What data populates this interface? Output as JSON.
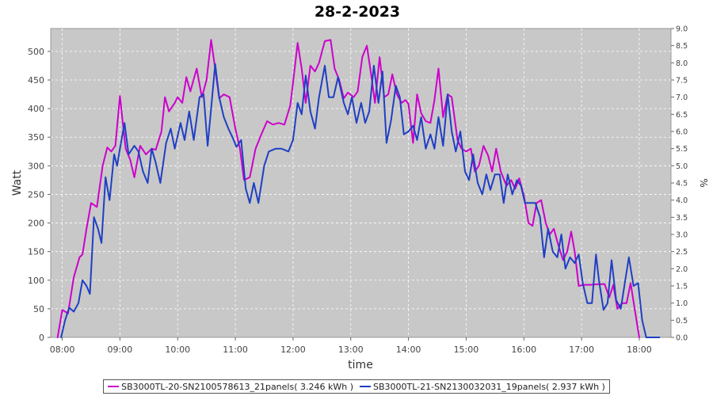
{
  "chart_data": {
    "type": "line",
    "title": "28-2-2023",
    "xlabel": "time",
    "ylabel": "Watt",
    "y2label": "%",
    "xlim": [
      7.8,
      18.55
    ],
    "ylim": [
      0,
      540
    ],
    "y2lim": [
      0,
      9.0
    ],
    "x_ticks": [
      {
        "value": 8,
        "label": "08:00"
      },
      {
        "value": 9,
        "label": "09:00"
      },
      {
        "value": 10,
        "label": "10:00"
      },
      {
        "value": 11,
        "label": "11:00"
      },
      {
        "value": 12,
        "label": "12:00"
      },
      {
        "value": 13,
        "label": "13:00"
      },
      {
        "value": 14,
        "label": "14:00"
      },
      {
        "value": 15,
        "label": "15:00"
      },
      {
        "value": 16,
        "label": "16:00"
      },
      {
        "value": 17,
        "label": "17:00"
      },
      {
        "value": 18,
        "label": "18:00"
      }
    ],
    "y_ticks": [
      {
        "value": 0,
        "label": "0"
      },
      {
        "value": 50,
        "label": "50"
      },
      {
        "value": 100,
        "label": "100"
      },
      {
        "value": 150,
        "label": "150"
      },
      {
        "value": 200,
        "label": "200"
      },
      {
        "value": 250,
        "label": "250"
      },
      {
        "value": 300,
        "label": "300"
      },
      {
        "value": 350,
        "label": "350"
      },
      {
        "value": 400,
        "label": "400"
      },
      {
        "value": 450,
        "label": "450"
      },
      {
        "value": 500,
        "label": "500"
      }
    ],
    "y2_ticks": [
      {
        "value": 0.0,
        "label": "0.0"
      },
      {
        "value": 0.5,
        "label": "0.5"
      },
      {
        "value": 1.0,
        "label": "1.0"
      },
      {
        "value": 1.5,
        "label": "1.5"
      },
      {
        "value": 2.0,
        "label": "2.0"
      },
      {
        "value": 2.5,
        "label": "2.5"
      },
      {
        "value": 3.0,
        "label": "3.0"
      },
      {
        "value": 3.5,
        "label": "3.5"
      },
      {
        "value": 4.0,
        "label": "4.0"
      },
      {
        "value": 4.5,
        "label": "4.5"
      },
      {
        "value": 5.0,
        "label": "5.0"
      },
      {
        "value": 5.5,
        "label": "5.5"
      },
      {
        "value": 6.0,
        "label": "6.0"
      },
      {
        "value": 6.5,
        "label": "6.5"
      },
      {
        "value": 7.0,
        "label": "7.0"
      },
      {
        "value": 7.5,
        "label": "7.5"
      },
      {
        "value": 8.0,
        "label": "8.0"
      },
      {
        "value": 8.5,
        "label": "8.5"
      },
      {
        "value": 9.0,
        "label": "9.0"
      }
    ],
    "grid": true,
    "legend_position": "bottom",
    "series": [
      {
        "name": "SB3000TL-20-SN2100578613_21panels( 3.246 kWh )",
        "color": "#cc00cc",
        "points": [
          [
            7.92,
            0
          ],
          [
            8.0,
            48
          ],
          [
            8.1,
            42
          ],
          [
            8.2,
            105
          ],
          [
            8.3,
            140
          ],
          [
            8.35,
            145
          ],
          [
            8.42,
            190
          ],
          [
            8.5,
            235
          ],
          [
            8.6,
            228
          ],
          [
            8.7,
            300
          ],
          [
            8.78,
            332
          ],
          [
            8.85,
            325
          ],
          [
            8.92,
            335
          ],
          [
            9.0,
            422
          ],
          [
            9.05,
            375
          ],
          [
            9.1,
            330
          ],
          [
            9.18,
            310
          ],
          [
            9.25,
            280
          ],
          [
            9.35,
            335
          ],
          [
            9.45,
            320
          ],
          [
            9.55,
            330
          ],
          [
            9.62,
            328
          ],
          [
            9.72,
            360
          ],
          [
            9.78,
            420
          ],
          [
            9.85,
            395
          ],
          [
            9.95,
            410
          ],
          [
            10.0,
            420
          ],
          [
            10.08,
            410
          ],
          [
            10.15,
            455
          ],
          [
            10.22,
            430
          ],
          [
            10.33,
            470
          ],
          [
            10.42,
            420
          ],
          [
            10.5,
            450
          ],
          [
            10.58,
            520
          ],
          [
            10.65,
            470
          ],
          [
            10.72,
            418
          ],
          [
            10.8,
            425
          ],
          [
            10.9,
            420
          ],
          [
            11.0,
            365
          ],
          [
            11.08,
            330
          ],
          [
            11.15,
            275
          ],
          [
            11.25,
            280
          ],
          [
            11.35,
            330
          ],
          [
            11.45,
            355
          ],
          [
            11.55,
            378
          ],
          [
            11.65,
            372
          ],
          [
            11.75,
            375
          ],
          [
            11.85,
            372
          ],
          [
            11.95,
            405
          ],
          [
            12.0,
            445
          ],
          [
            12.08,
            515
          ],
          [
            12.15,
            470
          ],
          [
            12.22,
            410
          ],
          [
            12.3,
            475
          ],
          [
            12.38,
            465
          ],
          [
            12.45,
            480
          ],
          [
            12.55,
            518
          ],
          [
            12.65,
            520
          ],
          [
            12.72,
            470
          ],
          [
            12.8,
            450
          ],
          [
            12.88,
            418
          ],
          [
            12.95,
            428
          ],
          [
            13.05,
            420
          ],
          [
            13.12,
            430
          ],
          [
            13.2,
            490
          ],
          [
            13.28,
            510
          ],
          [
            13.35,
            462
          ],
          [
            13.42,
            410
          ],
          [
            13.5,
            490
          ],
          [
            13.58,
            420
          ],
          [
            13.65,
            425
          ],
          [
            13.72,
            460
          ],
          [
            13.8,
            425
          ],
          [
            13.88,
            410
          ],
          [
            13.95,
            415
          ],
          [
            14.0,
            408
          ],
          [
            14.08,
            340
          ],
          [
            14.15,
            425
          ],
          [
            14.22,
            392
          ],
          [
            14.3,
            378
          ],
          [
            14.38,
            375
          ],
          [
            14.45,
            415
          ],
          [
            14.52,
            470
          ],
          [
            14.6,
            385
          ],
          [
            14.68,
            425
          ],
          [
            14.75,
            420
          ],
          [
            14.85,
            345
          ],
          [
            14.92,
            330
          ],
          [
            15.0,
            325
          ],
          [
            15.08,
            330
          ],
          [
            15.15,
            290
          ],
          [
            15.22,
            300
          ],
          [
            15.3,
            335
          ],
          [
            15.38,
            318
          ],
          [
            15.45,
            290
          ],
          [
            15.52,
            330
          ],
          [
            15.6,
            290
          ],
          [
            15.7,
            265
          ],
          [
            15.78,
            275
          ],
          [
            15.85,
            260
          ],
          [
            15.92,
            278
          ],
          [
            16.0,
            248
          ],
          [
            16.08,
            200
          ],
          [
            16.15,
            195
          ],
          [
            16.22,
            235
          ],
          [
            16.3,
            240
          ],
          [
            16.38,
            200
          ],
          [
            16.45,
            180
          ],
          [
            16.52,
            190
          ],
          [
            16.6,
            160
          ],
          [
            16.68,
            135
          ],
          [
            16.75,
            150
          ],
          [
            16.82,
            185
          ],
          [
            16.88,
            150
          ],
          [
            16.95,
            90
          ],
          [
            17.05,
            92
          ],
          [
            17.15,
            92
          ],
          [
            17.3,
            93
          ],
          [
            17.4,
            93
          ],
          [
            17.48,
            70
          ],
          [
            17.55,
            92
          ],
          [
            17.62,
            50
          ],
          [
            17.7,
            60
          ],
          [
            17.78,
            60
          ],
          [
            17.85,
            95
          ],
          [
            17.92,
            50
          ],
          [
            18.0,
            0
          ]
        ]
      },
      {
        "name": "SB3000TL-21-SN2130032031_19panels( 2.937 kWh )",
        "color": "#1f3fc4",
        "points": [
          [
            7.98,
            0
          ],
          [
            8.05,
            30
          ],
          [
            8.12,
            52
          ],
          [
            8.2,
            45
          ],
          [
            8.28,
            60
          ],
          [
            8.35,
            100
          ],
          [
            8.42,
            90
          ],
          [
            8.48,
            76
          ],
          [
            8.55,
            210
          ],
          [
            8.62,
            190
          ],
          [
            8.68,
            165
          ],
          [
            8.75,
            280
          ],
          [
            8.82,
            240
          ],
          [
            8.9,
            320
          ],
          [
            8.95,
            300
          ],
          [
            9.0,
            330
          ],
          [
            9.08,
            375
          ],
          [
            9.15,
            320
          ],
          [
            9.25,
            335
          ],
          [
            9.32,
            325
          ],
          [
            9.4,
            290
          ],
          [
            9.48,
            270
          ],
          [
            9.55,
            330
          ],
          [
            9.62,
            305
          ],
          [
            9.7,
            270
          ],
          [
            9.8,
            340
          ],
          [
            9.88,
            365
          ],
          [
            9.95,
            330
          ],
          [
            10.05,
            375
          ],
          [
            10.12,
            345
          ],
          [
            10.2,
            395
          ],
          [
            10.28,
            345
          ],
          [
            10.38,
            420
          ],
          [
            10.45,
            425
          ],
          [
            10.52,
            335
          ],
          [
            10.58,
            400
          ],
          [
            10.65,
            478
          ],
          [
            10.72,
            420
          ],
          [
            10.8,
            385
          ],
          [
            10.88,
            365
          ],
          [
            10.95,
            350
          ],
          [
            11.02,
            333
          ],
          [
            11.1,
            345
          ],
          [
            11.18,
            260
          ],
          [
            11.25,
            235
          ],
          [
            11.32,
            270
          ],
          [
            11.4,
            235
          ],
          [
            11.5,
            300
          ],
          [
            11.58,
            325
          ],
          [
            11.7,
            330
          ],
          [
            11.8,
            330
          ],
          [
            11.92,
            325
          ],
          [
            12.0,
            345
          ],
          [
            12.08,
            410
          ],
          [
            12.15,
            390
          ],
          [
            12.22,
            458
          ],
          [
            12.3,
            395
          ],
          [
            12.38,
            365
          ],
          [
            12.45,
            420
          ],
          [
            12.55,
            475
          ],
          [
            12.62,
            420
          ],
          [
            12.7,
            420
          ],
          [
            12.78,
            455
          ],
          [
            12.88,
            410
          ],
          [
            12.95,
            390
          ],
          [
            13.02,
            420
          ],
          [
            13.1,
            375
          ],
          [
            13.18,
            410
          ],
          [
            13.25,
            375
          ],
          [
            13.32,
            395
          ],
          [
            13.4,
            475
          ],
          [
            13.48,
            410
          ],
          [
            13.55,
            465
          ],
          [
            13.62,
            340
          ],
          [
            13.7,
            380
          ],
          [
            13.78,
            440
          ],
          [
            13.85,
            420
          ],
          [
            13.92,
            355
          ],
          [
            14.0,
            360
          ],
          [
            14.08,
            370
          ],
          [
            14.15,
            345
          ],
          [
            14.22,
            385
          ],
          [
            14.3,
            330
          ],
          [
            14.38,
            355
          ],
          [
            14.45,
            330
          ],
          [
            14.52,
            385
          ],
          [
            14.6,
            335
          ],
          [
            14.68,
            425
          ],
          [
            14.75,
            360
          ],
          [
            14.82,
            325
          ],
          [
            14.9,
            360
          ],
          [
            14.98,
            290
          ],
          [
            15.05,
            275
          ],
          [
            15.12,
            320
          ],
          [
            15.2,
            270
          ],
          [
            15.28,
            250
          ],
          [
            15.35,
            285
          ],
          [
            15.42,
            258
          ],
          [
            15.5,
            285
          ],
          [
            15.58,
            285
          ],
          [
            15.65,
            235
          ],
          [
            15.72,
            285
          ],
          [
            15.8,
            250
          ],
          [
            15.88,
            275
          ],
          [
            15.95,
            265
          ],
          [
            16.02,
            235
          ],
          [
            16.1,
            235
          ],
          [
            16.2,
            235
          ],
          [
            16.28,
            210
          ],
          [
            16.35,
            140
          ],
          [
            16.42,
            190
          ],
          [
            16.5,
            150
          ],
          [
            16.58,
            140
          ],
          [
            16.65,
            180
          ],
          [
            16.72,
            120
          ],
          [
            16.8,
            140
          ],
          [
            16.88,
            130
          ],
          [
            16.95,
            145
          ],
          [
            17.02,
            95
          ],
          [
            17.1,
            60
          ],
          [
            17.18,
            60
          ],
          [
            17.25,
            145
          ],
          [
            17.3,
            100
          ],
          [
            17.38,
            48
          ],
          [
            17.45,
            60
          ],
          [
            17.52,
            135
          ],
          [
            17.6,
            65
          ],
          [
            17.68,
            50
          ],
          [
            17.75,
            95
          ],
          [
            17.82,
            140
          ],
          [
            17.9,
            90
          ],
          [
            17.98,
            95
          ],
          [
            18.05,
            30
          ],
          [
            18.12,
            0
          ],
          [
            18.2,
            0
          ],
          [
            18.35,
            0
          ]
        ]
      }
    ]
  }
}
